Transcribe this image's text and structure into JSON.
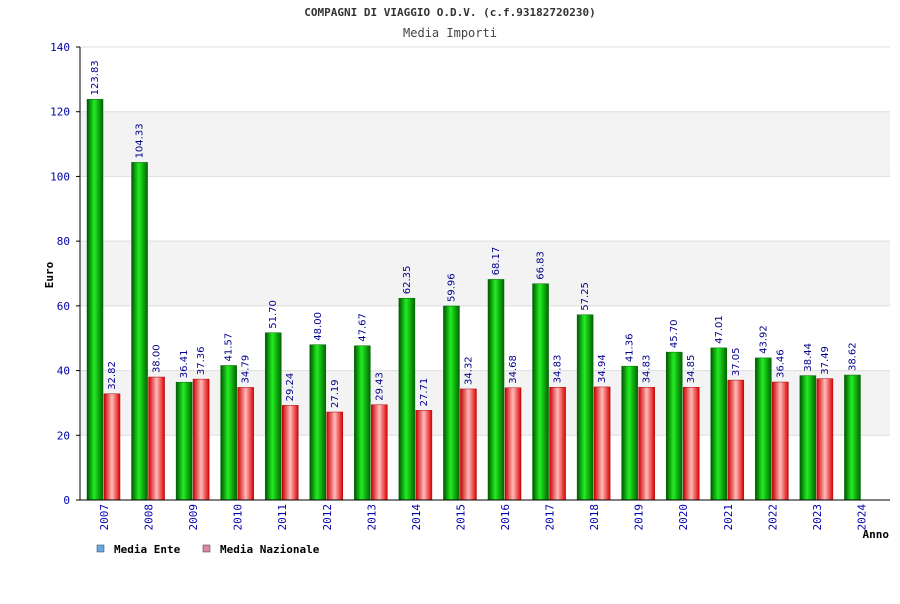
{
  "chart_data": {
    "type": "bar",
    "title": "COMPAGNI DI VIAGGIO O.D.V. (c.f.93182720230)",
    "subtitle": "Media Importi",
    "xlabel": "Anno",
    "ylabel": "Euro",
    "ylim": [
      0,
      140
    ],
    "yticks": [
      0,
      20,
      40,
      60,
      80,
      100,
      120,
      140
    ],
    "grid": true,
    "legend_position": "bottom-left",
    "categories": [
      "2007",
      "2008",
      "2009",
      "2010",
      "2011",
      "2012",
      "2013",
      "2014",
      "2015",
      "2016",
      "2017",
      "2018",
      "2019",
      "2020",
      "2021",
      "2022",
      "2023",
      "2024"
    ],
    "series": [
      {
        "name": "Media Ente",
        "color": "#00aa00",
        "legend_color": "#66aaee",
        "values": [
          123.83,
          104.33,
          36.41,
          41.57,
          51.7,
          48.0,
          47.67,
          62.35,
          59.96,
          68.17,
          66.83,
          57.25,
          41.36,
          45.7,
          47.01,
          43.92,
          38.44,
          38.62
        ],
        "labels": [
          "123.83",
          "104.33",
          "36.41",
          "41.57",
          "51.70",
          "48.00",
          "47.67",
          "62.35",
          "59.96",
          "68.17",
          "66.83",
          "57.25",
          "41.36",
          "45.70",
          "47.01",
          "43.92",
          "38.44",
          "38.62"
        ]
      },
      {
        "name": "Media Nazionale",
        "color": "#ee0000",
        "legend_color": "#dd88aa",
        "values": [
          32.82,
          38.0,
          37.36,
          34.79,
          29.24,
          27.19,
          29.43,
          27.71,
          34.32,
          34.68,
          34.83,
          34.94,
          34.83,
          34.85,
          37.05,
          36.46,
          37.49,
          null
        ],
        "labels": [
          "32.82",
          "38.00",
          "37.36",
          "34.79",
          "29.24",
          "27.19",
          "29.43",
          "27.71",
          "34.32",
          "34.68",
          "34.83",
          "34.94",
          "34.83",
          "34.85",
          "37.05",
          "36.46",
          "37.49",
          null
        ]
      }
    ]
  }
}
